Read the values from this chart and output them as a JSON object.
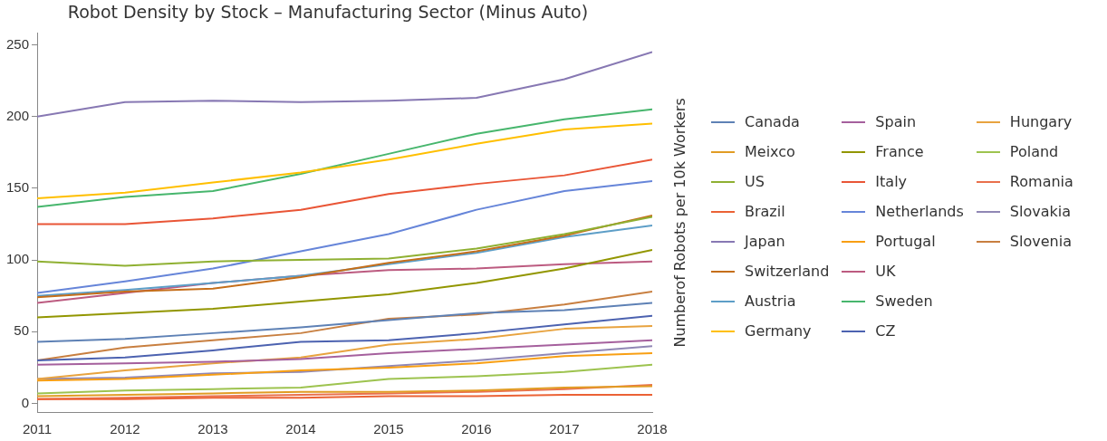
{
  "chart_data": {
    "type": "line",
    "title": "Robot Density by Stock – Manufacturing Sector (Minus Auto)",
    "ylabel": "Numberof Robots per 10k Workers",
    "x": [
      2011,
      2012,
      2013,
      2014,
      2015,
      2016,
      2017,
      2018
    ],
    "xlim": [
      2011,
      2018
    ],
    "xticks": [
      2011,
      2012,
      2013,
      2014,
      2015,
      2016,
      2017,
      2018
    ],
    "ylim": [
      -6,
      258
    ],
    "yticks": [
      0,
      50,
      100,
      150,
      200,
      250
    ],
    "grid": false,
    "legend": "right",
    "marker": "none",
    "line_style": "solid",
    "series": [
      {
        "name": "Canada",
        "color": "#5e81b5",
        "values": [
          43,
          45,
          49,
          53,
          58,
          63,
          65,
          70
        ]
      },
      {
        "name": "Meixco",
        "color": "#e19c24",
        "values": [
          5,
          6,
          7,
          8,
          8,
          9,
          11,
          12
        ]
      },
      {
        "name": "US",
        "color": "#8fb032",
        "values": [
          99,
          96,
          99,
          100,
          101,
          108,
          118,
          130
        ]
      },
      {
        "name": "Brazil",
        "color": "#eb6235",
        "values": [
          3,
          3,
          4,
          4,
          5,
          5,
          6,
          6
        ]
      },
      {
        "name": "Japan",
        "color": "#8778b3",
        "values": [
          200,
          210,
          211,
          210,
          211,
          213,
          226,
          245
        ]
      },
      {
        "name": "Switzerland",
        "color": "#c56e1a",
        "values": [
          74,
          78,
          80,
          88,
          98,
          106,
          117,
          131
        ]
      },
      {
        "name": "Austria",
        "color": "#5d9ec7",
        "values": [
          75,
          79,
          84,
          89,
          97,
          105,
          116,
          124
        ]
      },
      {
        "name": "Germany",
        "color": "#ffbf00",
        "values": [
          143,
          147,
          154,
          161,
          170,
          181,
          191,
          195
        ]
      },
      {
        "name": "Spain",
        "color": "#a5609d",
        "values": [
          27,
          28,
          29,
          31,
          35,
          38,
          41,
          44
        ]
      },
      {
        "name": "France",
        "color": "#929600",
        "values": [
          60,
          63,
          66,
          71,
          76,
          84,
          94,
          107
        ]
      },
      {
        "name": "Italy",
        "color": "#e95536",
        "values": [
          125,
          125,
          129,
          135,
          146,
          153,
          159,
          170
        ]
      },
      {
        "name": "Netherlands",
        "color": "#6685d9",
        "values": [
          77,
          85,
          94,
          106,
          118,
          135,
          148,
          155
        ]
      },
      {
        "name": "Portugal",
        "color": "#f89f13",
        "values": [
          16,
          17,
          20,
          23,
          25,
          28,
          33,
          35
        ]
      },
      {
        "name": "UK",
        "color": "#bc5b80",
        "values": [
          70,
          77,
          84,
          89,
          93,
          94,
          97,
          99
        ]
      },
      {
        "name": "Sweden",
        "color": "#47b66d",
        "values": [
          137,
          144,
          148,
          160,
          174,
          188,
          198,
          205
        ]
      },
      {
        "name": "CZ",
        "color": "#4c62b0",
        "values": [
          30,
          32,
          37,
          43,
          44,
          49,
          55,
          61
        ]
      },
      {
        "name": "Hungary",
        "color": "#e8a33f",
        "values": [
          17,
          23,
          28,
          32,
          41,
          45,
          52,
          54
        ]
      },
      {
        "name": "Poland",
        "color": "#9dc34f",
        "values": [
          7,
          9,
          10,
          11,
          17,
          19,
          22,
          27
        ]
      },
      {
        "name": "Romania",
        "color": "#e9704c",
        "values": [
          3,
          4,
          5,
          6,
          7,
          8,
          10,
          13
        ]
      },
      {
        "name": "Slovakia",
        "color": "#9087b5",
        "values": [
          17,
          18,
          21,
          22,
          26,
          30,
          35,
          40
        ]
      },
      {
        "name": "Slovenia",
        "color": "#c87f40",
        "values": [
          30,
          39,
          44,
          49,
          59,
          62,
          69,
          78
        ]
      }
    ]
  }
}
